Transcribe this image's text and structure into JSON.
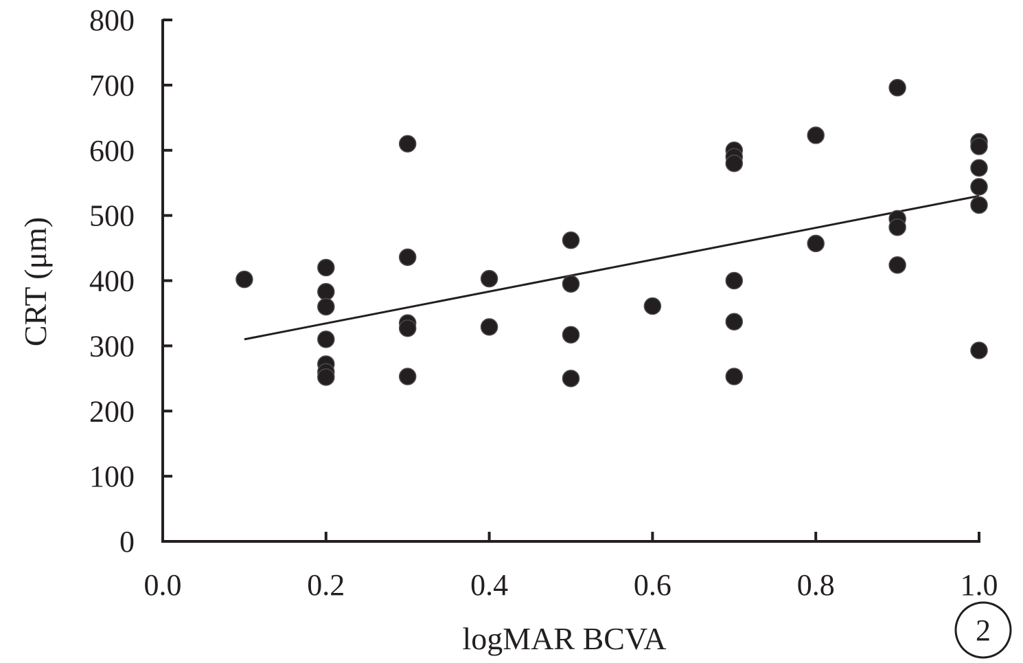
{
  "chart_data": {
    "type": "scatter",
    "title": "",
    "xlabel": "logMAR BCVA",
    "ylabel": "CRT (μm)",
    "xlim": [
      0.0,
      1.0
    ],
    "ylim": [
      0,
      800
    ],
    "x_ticks": [
      "0.0",
      "0.2",
      "0.4",
      "0.6",
      "0.8",
      "1.0"
    ],
    "y_ticks": [
      "0",
      "100",
      "200",
      "300",
      "400",
      "500",
      "600",
      "700",
      "800"
    ],
    "grid": false,
    "legend": "none",
    "marker_color": "#231f20",
    "points": [
      {
        "x": 0.1,
        "y": 402
      },
      {
        "x": 0.2,
        "y": 420
      },
      {
        "x": 0.2,
        "y": 383
      },
      {
        "x": 0.2,
        "y": 360
      },
      {
        "x": 0.2,
        "y": 310
      },
      {
        "x": 0.2,
        "y": 272
      },
      {
        "x": 0.2,
        "y": 260
      },
      {
        "x": 0.2,
        "y": 252
      },
      {
        "x": 0.3,
        "y": 610
      },
      {
        "x": 0.3,
        "y": 436
      },
      {
        "x": 0.3,
        "y": 335
      },
      {
        "x": 0.3,
        "y": 327
      },
      {
        "x": 0.3,
        "y": 253
      },
      {
        "x": 0.4,
        "y": 403
      },
      {
        "x": 0.4,
        "y": 329
      },
      {
        "x": 0.5,
        "y": 462
      },
      {
        "x": 0.5,
        "y": 395
      },
      {
        "x": 0.5,
        "y": 317
      },
      {
        "x": 0.5,
        "y": 250
      },
      {
        "x": 0.6,
        "y": 361
      },
      {
        "x": 0.7,
        "y": 600
      },
      {
        "x": 0.7,
        "y": 590
      },
      {
        "x": 0.7,
        "y": 580
      },
      {
        "x": 0.7,
        "y": 400
      },
      {
        "x": 0.7,
        "y": 337
      },
      {
        "x": 0.7,
        "y": 253
      },
      {
        "x": 0.8,
        "y": 623
      },
      {
        "x": 0.8,
        "y": 457
      },
      {
        "x": 0.9,
        "y": 696
      },
      {
        "x": 0.9,
        "y": 495
      },
      {
        "x": 0.9,
        "y": 482
      },
      {
        "x": 0.9,
        "y": 424
      },
      {
        "x": 1.0,
        "y": 613
      },
      {
        "x": 1.0,
        "y": 606
      },
      {
        "x": 1.0,
        "y": 573
      },
      {
        "x": 1.0,
        "y": 544
      },
      {
        "x": 1.0,
        "y": 516
      },
      {
        "x": 1.0,
        "y": 293
      }
    ],
    "trendline": {
      "x": [
        0.1,
        1.0
      ],
      "y": [
        310,
        530
      ]
    },
    "annotation": "2"
  }
}
